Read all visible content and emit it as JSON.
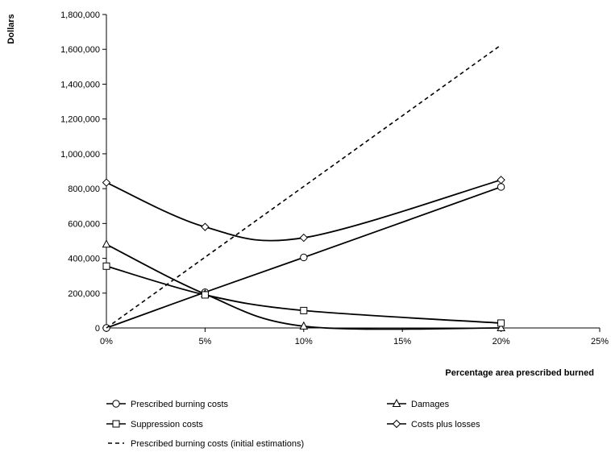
{
  "chart_data": {
    "type": "line",
    "title": "",
    "xlabel": "Percentage area prescribed burned",
    "ylabel": "Dollars",
    "xlim": [
      0,
      25
    ],
    "ylim": [
      0,
      1800000
    ],
    "x_ticks": [
      0,
      5,
      10,
      15,
      20,
      25
    ],
    "x_tick_labels": [
      "0%",
      "5%",
      "10%",
      "15%",
      "20%",
      "25%"
    ],
    "y_ticks": [
      0,
      200000,
      400000,
      600000,
      800000,
      1000000,
      1200000,
      1400000,
      1600000,
      1800000
    ],
    "y_tick_labels": [
      "0",
      "200,000",
      "400,000",
      "600,000",
      "800,000",
      "1,000,000",
      "1,200,000",
      "1,400,000",
      "1,600,000",
      "1,800,000"
    ],
    "grid": false,
    "legend_position": "bottom",
    "series": [
      {
        "name": "Prescribed burning costs",
        "marker": "circle",
        "style": "solid",
        "x": [
          0,
          5,
          10,
          20
        ],
        "values": [
          0,
          205000,
          405000,
          810000
        ]
      },
      {
        "name": "Damages",
        "marker": "triangle",
        "style": "solid",
        "x": [
          0,
          5,
          10,
          20
        ],
        "values": [
          480000,
          195000,
          10000,
          0
        ]
      },
      {
        "name": "Suppression costs",
        "marker": "square",
        "style": "solid",
        "x": [
          0,
          5,
          10,
          20
        ],
        "values": [
          355000,
          190000,
          100000,
          28000
        ]
      },
      {
        "name": "Costs plus losses",
        "marker": "diamond",
        "style": "solid",
        "x": [
          0,
          5,
          10,
          20
        ],
        "values": [
          835000,
          580000,
          518000,
          850000
        ]
      },
      {
        "name": "Prescribed burning costs (initial estimations)",
        "marker": "none",
        "style": "dashed",
        "x": [
          0,
          20
        ],
        "values": [
          0,
          1625000
        ]
      }
    ]
  }
}
